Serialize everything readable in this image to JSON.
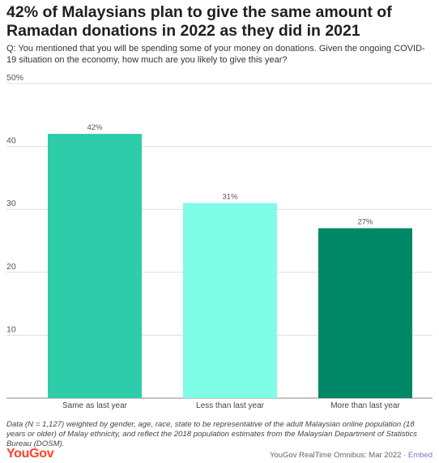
{
  "title": "42% of Malaysians plan to give the same amount of Ramadan donations in 2022 as they did in 2021",
  "question": "Q: You mentioned that you will be spending some of your money on donations. Given the ongoing COVID-19 situation on the economy, how much are you likely to give this year?",
  "footnote": "Data (N = 1,127) weighted by gender, age, race, state to be representative of the adult Malaysian online population (18 years or older) of Malay ethnicity, and reflect the 2018 population estimates from the Malaysian Department of Statistics Bureau (DOSM).",
  "logo": "YouGov",
  "source": "YouGov RealTime Omnibus: Mar 2022 · ",
  "embed_label": "Embed",
  "colors": {
    "bar1": "#2ecca8",
    "bar2": "#7ffde6",
    "bar3": "#008866",
    "grid": "#dddddd"
  },
  "chart_data": {
    "type": "bar",
    "categories": [
      "Same as last year",
      "Less than last year",
      "More than last year"
    ],
    "values": [
      42,
      31,
      27
    ],
    "value_labels": [
      "42%",
      "31%",
      "27%"
    ],
    "yticks": [
      "10",
      "20",
      "30",
      "40",
      "50%"
    ],
    "ytick_values": [
      10,
      20,
      30,
      40,
      50
    ],
    "ylim": [
      0,
      50
    ],
    "grid": true
  }
}
